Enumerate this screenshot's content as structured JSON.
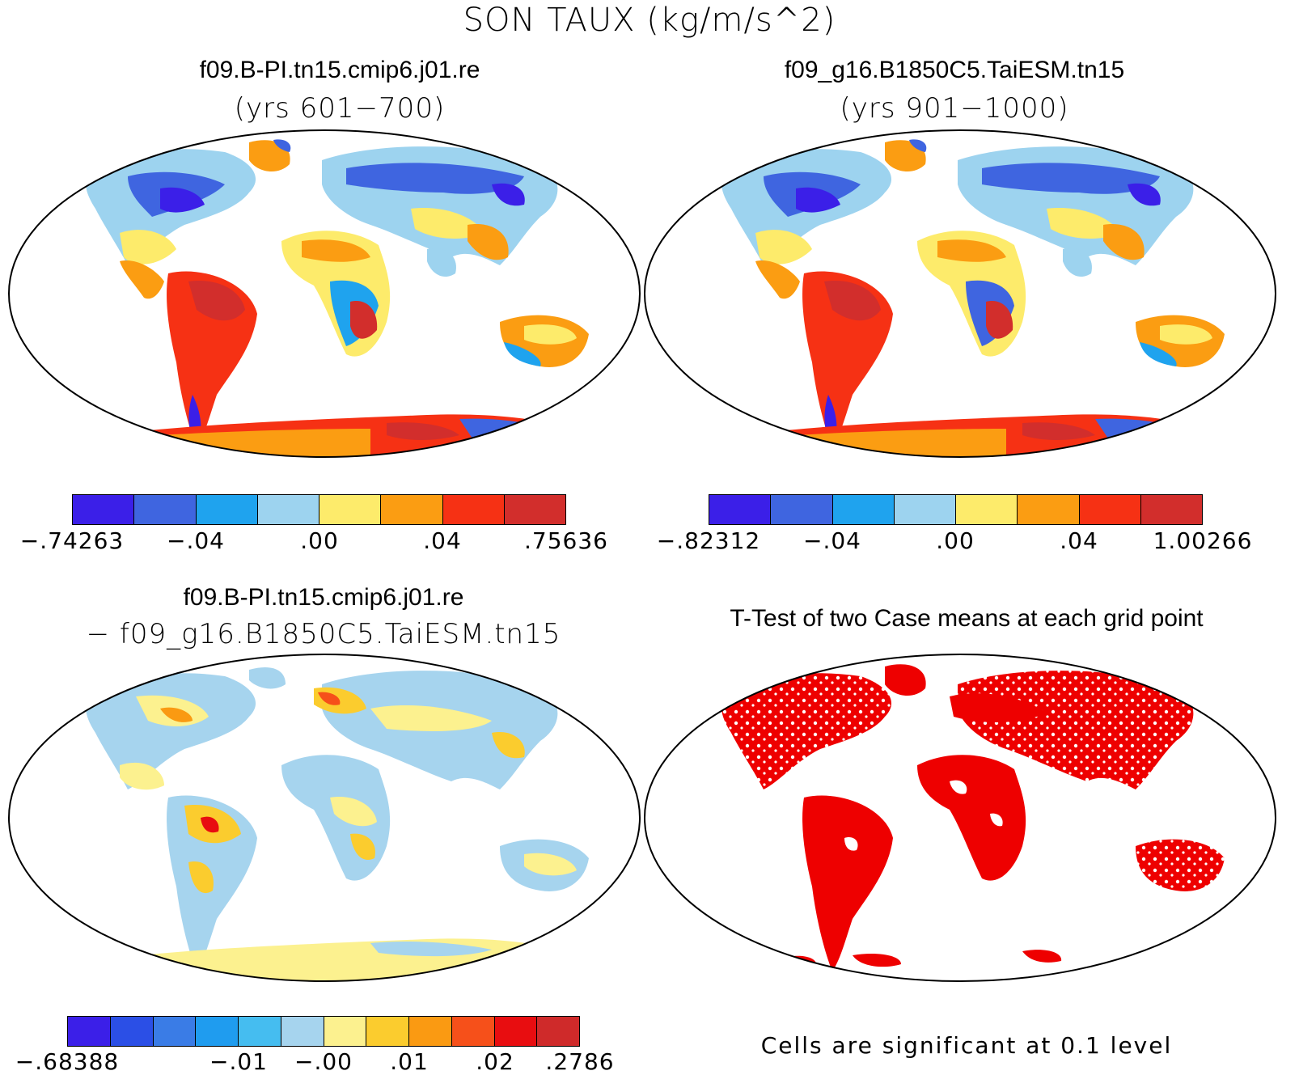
{
  "title": "SON TAUX (kg/m/s^2)",
  "panels": [
    {
      "id": "case1",
      "title": "f09.B-PI.tn15.cmip6.j01.re",
      "subtitle": "(yrs 601−700)",
      "colorbar": {
        "colors": [
          "#3b1fe8",
          "#3f65e0",
          "#1fa3ee",
          "#9dd3ef",
          "#fdeb6b",
          "#fb9d12",
          "#f63114",
          "#d22e2c"
        ],
        "labels": [
          "−.74263",
          "−.04",
          ".00",
          ".04",
          ".75636"
        ]
      }
    },
    {
      "id": "case2",
      "title": "f09_g16.B1850C5.TaiESM.tn15",
      "subtitle": "(yrs 901−1000)",
      "colorbar": {
        "colors": [
          "#3b1fe8",
          "#3f65e0",
          "#1fa3ee",
          "#9dd3ef",
          "#fdeb6b",
          "#fb9d12",
          "#f63114",
          "#d22e2c"
        ],
        "labels": [
          "−.82312",
          "−.04",
          ".00",
          ".04",
          "1.00266"
        ]
      }
    },
    {
      "id": "diff",
      "title": "f09.B-PI.tn15.cmip6.j01.re",
      "subtitle": "− f09_g16.B1850C5.TaiESM.tn15",
      "colorbar": {
        "colors": [
          "#3b1fe8",
          "#2b4fe6",
          "#3a7ce6",
          "#1f9cef",
          "#45bdf0",
          "#a6d4ee",
          "#fcf18f",
          "#fbcc2e",
          "#fa9a12",
          "#f6501a",
          "#e80d10",
          "#cf2a2a"
        ],
        "labels": [
          "−.68388",
          "−.01",
          "−.00",
          ".01",
          ".02",
          ".2786"
        ]
      }
    },
    {
      "id": "ttest",
      "title": "T-Test of two Case means at each grid point",
      "note": "Cells are significant at 0.1 level",
      "significant_color": "#ee0000"
    }
  ]
}
